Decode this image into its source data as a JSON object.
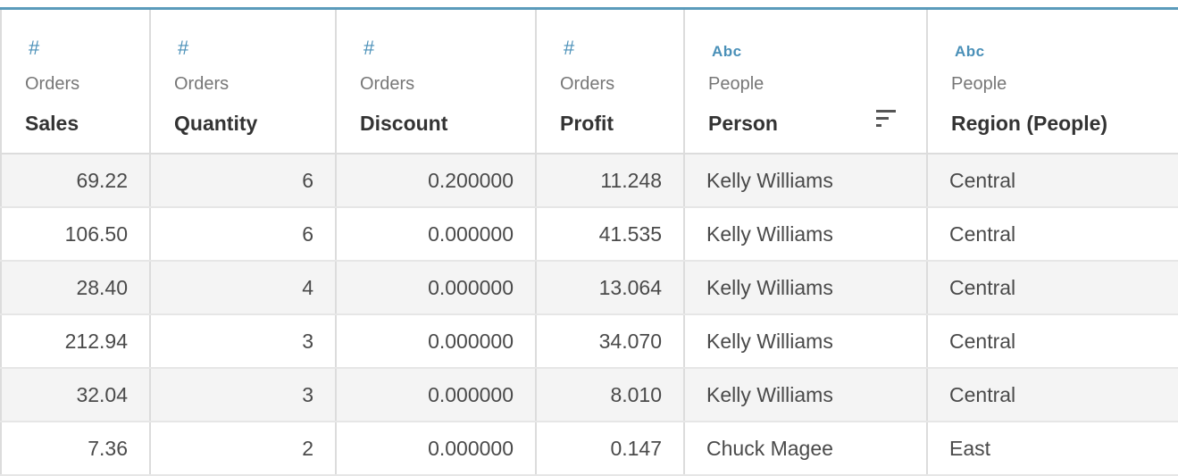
{
  "columns": [
    {
      "source": "Orders",
      "name": "Sales",
      "type_icon": "#",
      "type": "number"
    },
    {
      "source": "Orders",
      "name": "Quantity",
      "type_icon": "#",
      "type": "number"
    },
    {
      "source": "Orders",
      "name": "Discount",
      "type_icon": "#",
      "type": "number"
    },
    {
      "source": "Orders",
      "name": "Profit",
      "type_icon": "#",
      "type": "number"
    },
    {
      "source": "People",
      "name": "Person",
      "type_icon": "Abc",
      "type": "string",
      "sorted": true
    },
    {
      "source": "People",
      "name": "Region (People)",
      "type_icon": "Abc",
      "type": "string"
    }
  ],
  "rows": [
    [
      "69.22",
      "6",
      "0.200000",
      "11.248",
      "Kelly Williams",
      "Central"
    ],
    [
      "106.50",
      "6",
      "0.000000",
      "41.535",
      "Kelly Williams",
      "Central"
    ],
    [
      "28.40",
      "4",
      "0.000000",
      "13.064",
      "Kelly Williams",
      "Central"
    ],
    [
      "212.94",
      "3",
      "0.000000",
      "34.070",
      "Kelly Williams",
      "Central"
    ],
    [
      "32.04",
      "3",
      "0.000000",
      "8.010",
      "Kelly Williams",
      "Central"
    ],
    [
      "7.36",
      "2",
      "0.000000",
      "0.147",
      "Chuck Magee",
      "East"
    ]
  ],
  "colors": {
    "accent": "#5b9bbb",
    "type_icon": "#4a90b8",
    "row_alt": "#f4f4f4"
  }
}
